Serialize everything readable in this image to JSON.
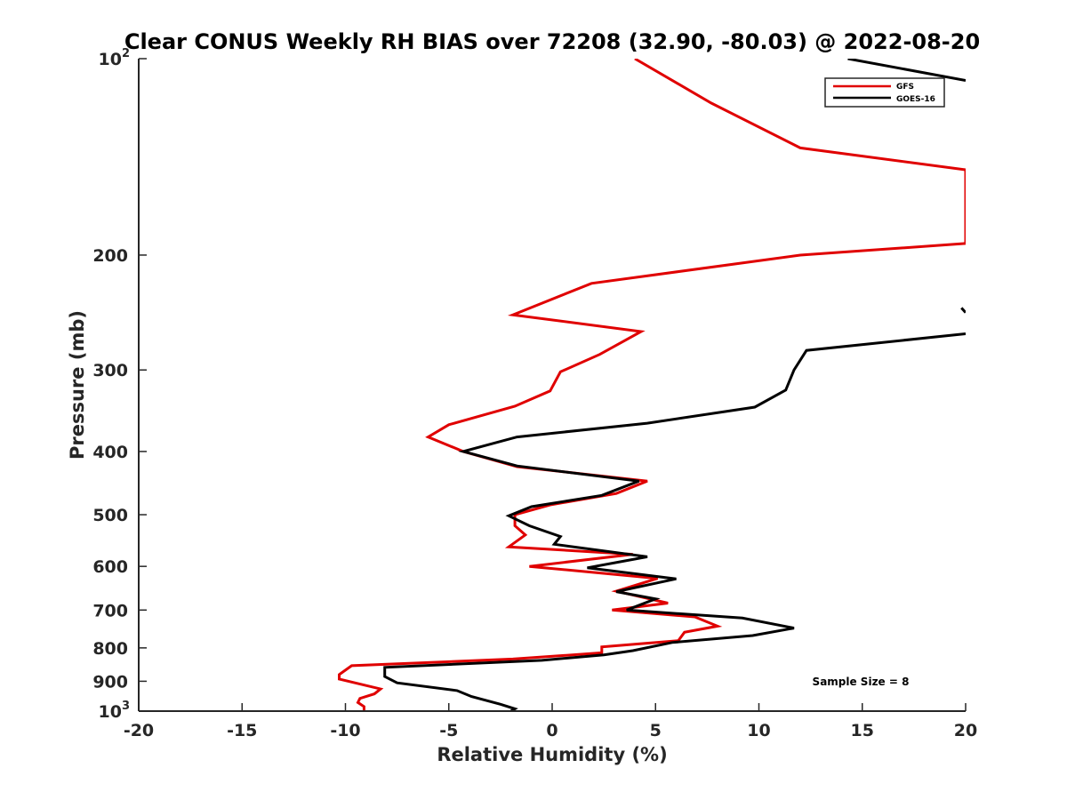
{
  "chart_data": {
    "type": "line",
    "title": "Clear CONUS Weekly RH BIAS over 72208 (32.90, -80.03) @ 2022-08-20",
    "xlabel": "Relative Humidity (%)",
    "ylabel": "Pressure (mb)",
    "xlim": [
      -20,
      20
    ],
    "ylim": [
      100,
      1000
    ],
    "y_scale": "log",
    "y_reversed": true,
    "x_ticks": [
      -20,
      -15,
      -10,
      -5,
      0,
      5,
      10,
      15,
      20
    ],
    "x_tick_labels": [
      "-20",
      "-15",
      "-10",
      "-5",
      "0",
      "5",
      "10",
      "15",
      "20"
    ],
    "y_ticks": [
      100,
      200,
      300,
      400,
      500,
      600,
      700,
      800,
      900,
      1000
    ],
    "y_tick_labels": [
      {
        "base": "10",
        "exp": "2"
      },
      {
        "base": "200",
        "exp": ""
      },
      {
        "base": "300",
        "exp": ""
      },
      {
        "base": "400",
        "exp": ""
      },
      {
        "base": "500",
        "exp": ""
      },
      {
        "base": "600",
        "exp": ""
      },
      {
        "base": "700",
        "exp": ""
      },
      {
        "base": "800",
        "exp": ""
      },
      {
        "base": "900",
        "exp": ""
      },
      {
        "base": "10",
        "exp": "3"
      }
    ],
    "grid": false,
    "legend_position": "top-right",
    "annotation": "Sample Size = 8",
    "series": [
      {
        "name": "GFS",
        "color": "#e00000",
        "points": [
          [
            4,
            100
          ],
          [
            7.7,
            117
          ],
          [
            12,
            137
          ],
          [
            20,
            148
          ],
          [
            20,
            192
          ],
          [
            12,
            200
          ],
          [
            1.9,
            221
          ],
          [
            -1.9,
            247
          ],
          [
            4.3,
            262
          ],
          [
            2.3,
            284
          ],
          [
            0.4,
            302
          ],
          [
            -0.1,
            323
          ],
          [
            -1.8,
            341
          ],
          [
            -5,
            364
          ],
          [
            -6,
            380
          ],
          [
            -4.3,
            400
          ],
          [
            -1.7,
            422
          ],
          [
            4.6,
            444
          ],
          [
            3.1,
            464
          ],
          [
            -0.1,
            483
          ],
          [
            -1.8,
            500
          ],
          [
            -1.8,
            520
          ],
          [
            -1.3,
            537
          ],
          [
            -2.1,
            560
          ],
          [
            3.9,
            575
          ],
          [
            -1.1,
            600
          ],
          [
            5.1,
            626
          ],
          [
            3.1,
            655
          ],
          [
            5.6,
            683
          ],
          [
            2.9,
            700
          ],
          [
            6.9,
            717
          ],
          [
            8.0,
            741
          ],
          [
            6.4,
            757
          ],
          [
            6.1,
            780
          ],
          [
            2.4,
            797
          ],
          [
            2.4,
            814
          ],
          [
            -1.9,
            832
          ],
          [
            -9.7,
            852
          ],
          [
            -10.3,
            879
          ],
          [
            -10.3,
            893
          ],
          [
            -8.3,
            925
          ],
          [
            -8.6,
            941
          ],
          [
            -9.3,
            956
          ],
          [
            -9.4,
            970
          ],
          [
            -9.1,
            984
          ],
          [
            -9.1,
            1000
          ]
        ]
      },
      {
        "name": "GOES-16",
        "color": "#000000",
        "points": [
          [
            14.3,
            100
          ],
          [
            20,
            108
          ],
          null,
          [
            19.8,
            241
          ],
          [
            20,
            245
          ],
          null,
          [
            20,
            264
          ],
          [
            12.3,
            280
          ],
          [
            11.7,
            300
          ],
          [
            11.3,
            322
          ],
          [
            9.8,
            342
          ],
          [
            4.6,
            362
          ],
          [
            -1.7,
            380
          ],
          [
            -4.3,
            400
          ],
          [
            -1.7,
            421
          ],
          [
            4.2,
            444
          ],
          [
            2.4,
            467
          ],
          [
            -1.0,
            486
          ],
          [
            -2.1,
            502
          ],
          [
            -1.1,
            520
          ],
          [
            0.4,
            540
          ],
          [
            0.1,
            555
          ],
          [
            4.6,
            580
          ],
          [
            1.7,
            603
          ],
          [
            6.0,
            627
          ],
          [
            3.1,
            656
          ],
          [
            5.0,
            673
          ],
          [
            3.6,
            700
          ],
          [
            9.2,
            720
          ],
          [
            11.7,
            746
          ],
          [
            9.7,
            766
          ],
          [
            5.8,
            785
          ],
          [
            3.9,
            808
          ],
          [
            2.5,
            820
          ],
          [
            -0.5,
            836
          ],
          [
            -8.1,
            857
          ],
          [
            -8.1,
            885
          ],
          [
            -7.5,
            905
          ],
          [
            -4.6,
            930
          ],
          [
            -3.9,
            950
          ],
          [
            -2.5,
            976
          ],
          [
            -1.8,
            992
          ],
          [
            -2.0,
            1000
          ]
        ]
      }
    ]
  }
}
